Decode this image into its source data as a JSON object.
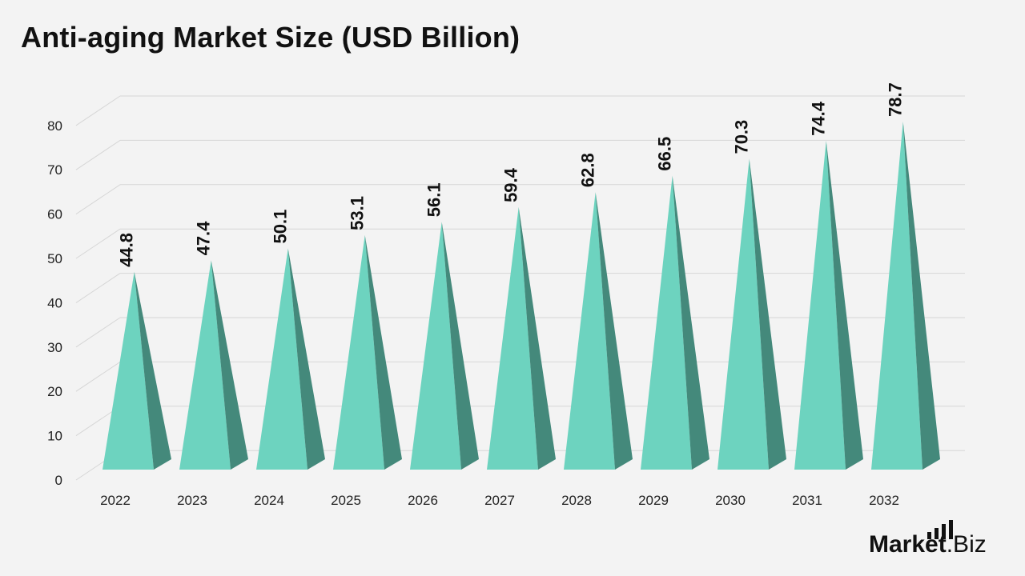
{
  "chart_data": {
    "type": "bar",
    "title": "Anti-aging Market Size (USD Billion)",
    "xlabel": "",
    "ylabel": "",
    "categories": [
      "2022",
      "2023",
      "2024",
      "2025",
      "2026",
      "2027",
      "2028",
      "2029",
      "2030",
      "2031",
      "2032"
    ],
    "values": [
      44.8,
      47.4,
      50.1,
      53.1,
      56.1,
      59.4,
      62.8,
      66.5,
      70.3,
      74.4,
      78.7
    ],
    "value_labels": [
      "44.8",
      "47.4",
      "50.1",
      "53.1",
      "56.1",
      "59.4",
      "62.8",
      "66.5",
      "70.3",
      "74.4",
      "78.7"
    ],
    "yticks": [
      "0",
      "10",
      "20",
      "30",
      "40",
      "50",
      "60",
      "70",
      "80"
    ],
    "ylim": [
      0,
      80
    ],
    "bar_shape": "pyramid",
    "grid": true,
    "legend": "none",
    "colors": {
      "front": "#6dd3bf",
      "side": "#44897b",
      "grid": "#d6d6d6"
    }
  },
  "brand": {
    "part1": "Market",
    "part2": ".Biz"
  }
}
